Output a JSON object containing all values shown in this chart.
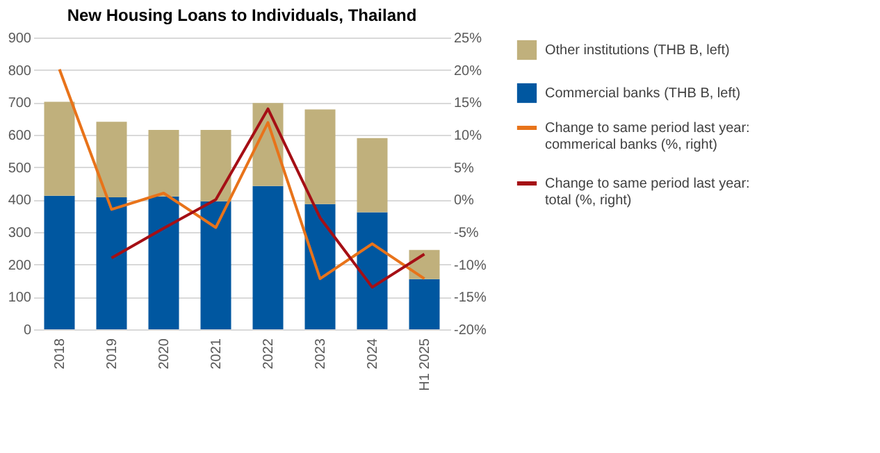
{
  "chart_data": {
    "type": "bar",
    "title": "New Housing Loans to Individuals, Thailand",
    "categories": [
      "2018",
      "2019",
      "2020",
      "2021",
      "2022",
      "2023",
      "2024",
      "H1 2025"
    ],
    "stacked": true,
    "legend": "right",
    "grid": "y",
    "ylim": [
      0,
      900
    ],
    "yticks": [
      0,
      100,
      200,
      300,
      400,
      500,
      600,
      700,
      800,
      900
    ],
    "y2lim": [
      -20,
      25
    ],
    "y2ticks": [
      {
        "value": -20,
        "label": "-20%"
      },
      {
        "value": -15,
        "label": "-15%"
      },
      {
        "value": -10,
        "label": "-10%"
      },
      {
        "value": -5,
        "label": "-5%"
      },
      {
        "value": 0,
        "label": "0%"
      },
      {
        "value": 5,
        "label": "5%"
      },
      {
        "value": 10,
        "label": "10%"
      },
      {
        "value": 15,
        "label": "15%"
      },
      {
        "value": 20,
        "label": "20%"
      },
      {
        "value": 25,
        "label": "25%"
      }
    ],
    "series": [
      {
        "name": "Commercial banks (THB B, left)",
        "color": "#0057a0",
        "values": [
          412,
          407,
          410,
          395,
          442,
          386,
          361,
          155
        ]
      },
      {
        "name": "Other institutions (THB B, left)",
        "color": "#c0b07c",
        "values": [
          290,
          233,
          205,
          220,
          256,
          292,
          229,
          90
        ]
      },
      {
        "name": "Change to same period last year: commerical banks (%, right)",
        "type": "line",
        "axis": "y2",
        "color": "#e8731a",
        "values": [
          20.1,
          -1.5,
          1.0,
          -4.3,
          11.9,
          -12.2,
          -6.8,
          -12.2
        ]
      },
      {
        "name": "Change to same period last year: total (%, right)",
        "type": "line",
        "axis": "y2",
        "color": "#a50f15",
        "values": [
          null,
          -9.0,
          -4.4,
          0,
          14.0,
          -2.8,
          -13.5,
          -8.4
        ]
      }
    ]
  }
}
